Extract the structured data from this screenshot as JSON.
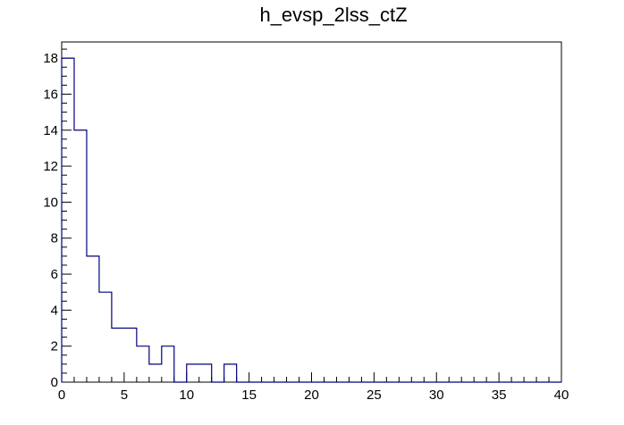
{
  "chart_data": {
    "type": "histogram",
    "title": "h_evsp_2lss_ctZ",
    "xlabel": "",
    "ylabel": "",
    "xlim": [
      0,
      40
    ],
    "ylim": [
      0,
      18.9
    ],
    "bin_width": 1,
    "bin_edges_start": 0,
    "values": [
      18,
      14,
      7,
      5,
      3,
      3,
      2,
      1,
      2,
      0,
      1,
      1,
      0,
      1,
      0,
      0,
      0,
      0,
      0,
      0,
      0,
      0,
      0,
      0,
      0,
      0,
      0,
      0,
      0,
      0,
      0,
      0,
      0,
      0,
      0,
      0,
      0,
      0,
      0,
      0
    ],
    "x_ticks": [
      0,
      5,
      10,
      15,
      20,
      25,
      30,
      35,
      40
    ],
    "y_ticks": [
      0,
      2,
      4,
      6,
      8,
      10,
      12,
      14,
      16,
      18
    ],
    "line_color": "#00007f",
    "grid": false,
    "legend": "none"
  }
}
